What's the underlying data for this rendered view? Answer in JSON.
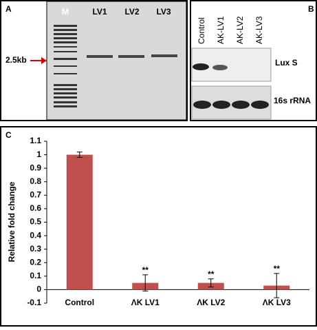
{
  "panel_a": {
    "label": "A",
    "lanes": [
      "M",
      "LV1",
      "LV2",
      "LV3"
    ],
    "marker": "2.5kb"
  },
  "panel_b": {
    "label": "B",
    "lanes": [
      "Control",
      "AK-LV1",
      "AK-LV2",
      "AK-LV3"
    ],
    "rows": [
      "Lux S",
      "16s rRNA"
    ]
  },
  "chart_data": {
    "type": "bar",
    "panel_label": "C",
    "y_label": "Relative fold change",
    "categories": [
      "Control",
      "ΛK LV1",
      "ΛK LV2",
      "ΛK LV3"
    ],
    "values": [
      1.0,
      0.05,
      0.05,
      0.03
    ],
    "errors": [
      0.02,
      0.06,
      0.03,
      0.09
    ],
    "color": "#c0504d",
    "annotations": [
      {
        "category": "ΛK LV1",
        "text": "**"
      },
      {
        "category": "ΛK LV2",
        "text": "**"
      },
      {
        "category": "ΛK LV3",
        "text": "**"
      }
    ],
    "ylim": [
      -0.1,
      1.1
    ],
    "yticks": [
      -0.1,
      0,
      0.1,
      0.2,
      0.3,
      0.4,
      0.5,
      0.6,
      0.7,
      0.8,
      0.9,
      1,
      1.1
    ]
  }
}
